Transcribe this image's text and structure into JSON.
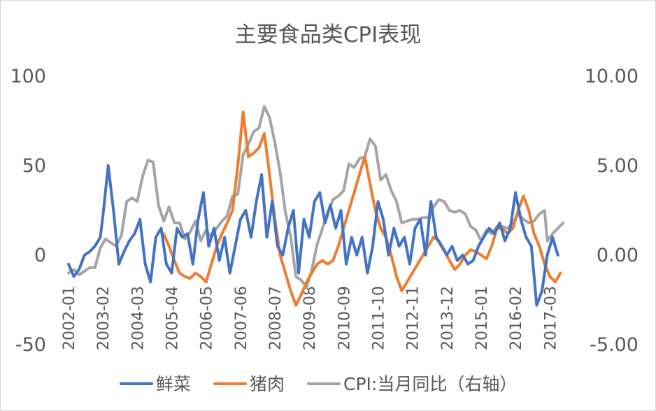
{
  "chart_data": {
    "type": "line",
    "title": "主要食品类CPI表现",
    "x_tick_labels": [
      "2002-01",
      "2003-02",
      "2004-03",
      "2005-04",
      "2006-05",
      "2007-06",
      "2008-07",
      "2009-08",
      "2010-09",
      "2011-10",
      "2012-11",
      "2013-12",
      "2015-01",
      "2016-02",
      "2017-03"
    ],
    "ylim_left": [
      -50,
      100
    ],
    "ylim_right": [
      -5,
      10
    ],
    "y_ticks_left": [
      "100",
      "50",
      "0",
      "-50"
    ],
    "y_ticks_right": [
      "10.00",
      "5.00",
      "0.00",
      "-5.00"
    ],
    "grid": false,
    "legend_position": "bottom",
    "series": [
      {
        "name": "鲜菜",
        "axis": "left",
        "color": "#4472C4",
        "points": [
          [
            "2002-01",
            -5
          ],
          [
            "2002-03",
            -12
          ],
          [
            "2002-05",
            -8
          ],
          [
            "2002-07",
            0
          ],
          [
            "2002-09",
            2
          ],
          [
            "2002-11",
            5
          ],
          [
            "2003-01",
            10
          ],
          [
            "2003-02",
            22
          ],
          [
            "2003-04",
            50
          ],
          [
            "2003-06",
            25
          ],
          [
            "2003-08",
            -5
          ],
          [
            "2003-10",
            2
          ],
          [
            "2003-12",
            8
          ],
          [
            "2004-02",
            12
          ],
          [
            "2004-04",
            20
          ],
          [
            "2004-06",
            -5
          ],
          [
            "2004-08",
            -15
          ],
          [
            "2004-10",
            10
          ],
          [
            "2004-12",
            15
          ],
          [
            "2005-02",
            -5
          ],
          [
            "2005-04",
            -10
          ],
          [
            "2005-06",
            15
          ],
          [
            "2005-08",
            10
          ],
          [
            "2005-10",
            12
          ],
          [
            "2005-12",
            -5
          ],
          [
            "2006-02",
            20
          ],
          [
            "2006-04",
            35
          ],
          [
            "2006-06",
            5
          ],
          [
            "2006-08",
            15
          ],
          [
            "2006-10",
            -3
          ],
          [
            "2006-12",
            10
          ],
          [
            "2007-02",
            -10
          ],
          [
            "2007-04",
            5
          ],
          [
            "2007-06",
            20
          ],
          [
            "2007-08",
            25
          ],
          [
            "2007-10",
            10
          ],
          [
            "2007-12",
            30
          ],
          [
            "2008-02",
            45
          ],
          [
            "2008-04",
            10
          ],
          [
            "2008-06",
            30
          ],
          [
            "2008-08",
            5
          ],
          [
            "2008-10",
            0
          ],
          [
            "2008-12",
            15
          ],
          [
            "2009-02",
            25
          ],
          [
            "2009-04",
            -10
          ],
          [
            "2009-06",
            20
          ],
          [
            "2009-08",
            10
          ],
          [
            "2009-10",
            30
          ],
          [
            "2009-12",
            35
          ],
          [
            "2010-02",
            18
          ],
          [
            "2010-04",
            28
          ],
          [
            "2010-06",
            15
          ],
          [
            "2010-08",
            25
          ],
          [
            "2010-10",
            -5
          ],
          [
            "2010-12",
            10
          ],
          [
            "2011-02",
            0
          ],
          [
            "2011-04",
            10
          ],
          [
            "2011-06",
            -10
          ],
          [
            "2011-08",
            5
          ],
          [
            "2011-10",
            30
          ],
          [
            "2011-12",
            20
          ],
          [
            "2012-02",
            0
          ],
          [
            "2012-04",
            15
          ],
          [
            "2012-06",
            5
          ],
          [
            "2012-08",
            10
          ],
          [
            "2012-10",
            -5
          ],
          [
            "2012-12",
            15
          ],
          [
            "2013-02",
            20
          ],
          [
            "2013-04",
            0
          ],
          [
            "2013-06",
            30
          ],
          [
            "2013-08",
            10
          ],
          [
            "2013-10",
            5
          ],
          [
            "2013-12",
            0
          ],
          [
            "2014-02",
            5
          ],
          [
            "2014-04",
            -3
          ],
          [
            "2014-06",
            0
          ],
          [
            "2014-08",
            -5
          ],
          [
            "2014-10",
            -3
          ],
          [
            "2014-12",
            5
          ],
          [
            "2015-02",
            10
          ],
          [
            "2015-04",
            15
          ],
          [
            "2015-06",
            12
          ],
          [
            "2015-08",
            18
          ],
          [
            "2015-10",
            8
          ],
          [
            "2015-12",
            15
          ],
          [
            "2016-02",
            35
          ],
          [
            "2016-04",
            20
          ],
          [
            "2016-06",
            10
          ],
          [
            "2016-08",
            5
          ],
          [
            "2016-10",
            -28
          ],
          [
            "2016-12",
            -20
          ],
          [
            "2017-02",
            0
          ],
          [
            "2017-04",
            10
          ],
          [
            "2017-06",
            0
          ]
        ]
      },
      {
        "name": "猪肉",
        "axis": "left",
        "color": "#ED7D31",
        "points": [
          [
            "2005-01",
            12
          ],
          [
            "2005-03",
            5
          ],
          [
            "2005-05",
            -3
          ],
          [
            "2005-07",
            -10
          ],
          [
            "2005-09",
            -12
          ],
          [
            "2005-11",
            -13
          ],
          [
            "2006-01",
            -10
          ],
          [
            "2006-03",
            -12
          ],
          [
            "2006-05",
            -15
          ],
          [
            "2006-07",
            -5
          ],
          [
            "2006-09",
            5
          ],
          [
            "2006-11",
            12
          ],
          [
            "2007-01",
            18
          ],
          [
            "2007-03",
            25
          ],
          [
            "2007-05",
            50
          ],
          [
            "2007-07",
            80
          ],
          [
            "2007-09",
            55
          ],
          [
            "2007-11",
            57
          ],
          [
            "2008-01",
            60
          ],
          [
            "2008-03",
            68
          ],
          [
            "2008-05",
            45
          ],
          [
            "2008-07",
            20
          ],
          [
            "2008-09",
            0
          ],
          [
            "2008-11",
            -10
          ],
          [
            "2009-01",
            -20
          ],
          [
            "2009-03",
            -28
          ],
          [
            "2009-05",
            -22
          ],
          [
            "2009-07",
            -15
          ],
          [
            "2009-09",
            -10
          ],
          [
            "2009-11",
            -5
          ],
          [
            "2010-01",
            -3
          ],
          [
            "2010-03",
            -5
          ],
          [
            "2010-05",
            -3
          ],
          [
            "2010-07",
            5
          ],
          [
            "2010-09",
            15
          ],
          [
            "2010-11",
            25
          ],
          [
            "2011-01",
            35
          ],
          [
            "2011-03",
            45
          ],
          [
            "2011-05",
            55
          ],
          [
            "2011-07",
            40
          ],
          [
            "2011-09",
            25
          ],
          [
            "2011-11",
            15
          ],
          [
            "2012-01",
            10
          ],
          [
            "2012-03",
            0
          ],
          [
            "2012-05",
            -12
          ],
          [
            "2012-07",
            -20
          ],
          [
            "2012-09",
            -15
          ],
          [
            "2012-11",
            -10
          ],
          [
            "2013-01",
            -5
          ],
          [
            "2013-03",
            0
          ],
          [
            "2013-05",
            5
          ],
          [
            "2013-07",
            10
          ],
          [
            "2013-09",
            8
          ],
          [
            "2013-11",
            3
          ],
          [
            "2014-01",
            -3
          ],
          [
            "2014-03",
            -8
          ],
          [
            "2014-05",
            -5
          ],
          [
            "2014-07",
            0
          ],
          [
            "2014-09",
            3
          ],
          [
            "2014-11",
            2
          ],
          [
            "2015-01",
            0
          ],
          [
            "2015-03",
            -2
          ],
          [
            "2015-05",
            5
          ],
          [
            "2015-07",
            15
          ],
          [
            "2015-09",
            15
          ],
          [
            "2015-11",
            12
          ],
          [
            "2016-01",
            15
          ],
          [
            "2016-03",
            25
          ],
          [
            "2016-05",
            33
          ],
          [
            "2016-07",
            25
          ],
          [
            "2016-09",
            12
          ],
          [
            "2016-11",
            5
          ],
          [
            "2017-01",
            -5
          ],
          [
            "2017-03",
            -12
          ],
          [
            "2017-05",
            -15
          ],
          [
            "2017-07",
            -10
          ]
        ]
      },
      {
        "name": "CPI:当月同比（右轴）",
        "axis": "right",
        "color": "#A5A5A5",
        "points": [
          [
            "2002-01",
            -1.0
          ],
          [
            "2002-03",
            -0.8
          ],
          [
            "2002-05",
            -1.1
          ],
          [
            "2002-07",
            -0.9
          ],
          [
            "2002-09",
            -0.7
          ],
          [
            "2002-11",
            -0.7
          ],
          [
            "2003-01",
            0.4
          ],
          [
            "2003-03",
            0.9
          ],
          [
            "2003-05",
            0.7
          ],
          [
            "2003-07",
            0.5
          ],
          [
            "2003-09",
            1.1
          ],
          [
            "2003-11",
            3.0
          ],
          [
            "2004-01",
            3.2
          ],
          [
            "2004-03",
            3.0
          ],
          [
            "2004-05",
            4.4
          ],
          [
            "2004-07",
            5.3
          ],
          [
            "2004-09",
            5.2
          ],
          [
            "2004-11",
            2.8
          ],
          [
            "2005-01",
            1.9
          ],
          [
            "2005-03",
            2.7
          ],
          [
            "2005-05",
            1.8
          ],
          [
            "2005-07",
            1.8
          ],
          [
            "2005-09",
            0.9
          ],
          [
            "2005-11",
            1.3
          ],
          [
            "2006-01",
            1.9
          ],
          [
            "2006-03",
            0.8
          ],
          [
            "2006-05",
            1.4
          ],
          [
            "2006-07",
            1.0
          ],
          [
            "2006-09",
            1.5
          ],
          [
            "2006-11",
            1.9
          ],
          [
            "2007-01",
            2.2
          ],
          [
            "2007-03",
            3.3
          ],
          [
            "2007-05",
            3.4
          ],
          [
            "2007-07",
            5.6
          ],
          [
            "2007-09",
            6.2
          ],
          [
            "2007-11",
            6.9
          ],
          [
            "2008-01",
            7.1
          ],
          [
            "2008-03",
            8.3
          ],
          [
            "2008-05",
            7.7
          ],
          [
            "2008-07",
            6.3
          ],
          [
            "2008-09",
            4.6
          ],
          [
            "2008-11",
            2.4
          ],
          [
            "2009-01",
            1.0
          ],
          [
            "2009-03",
            -1.2
          ],
          [
            "2009-05",
            -1.4
          ],
          [
            "2009-07",
            -1.8
          ],
          [
            "2009-09",
            -0.8
          ],
          [
            "2009-11",
            0.6
          ],
          [
            "2010-01",
            1.5
          ],
          [
            "2010-03",
            2.4
          ],
          [
            "2010-05",
            3.1
          ],
          [
            "2010-07",
            3.3
          ],
          [
            "2010-09",
            3.6
          ],
          [
            "2010-11",
            5.1
          ],
          [
            "2011-01",
            4.9
          ],
          [
            "2011-03",
            5.4
          ],
          [
            "2011-05",
            5.5
          ],
          [
            "2011-07",
            6.5
          ],
          [
            "2011-09",
            6.1
          ],
          [
            "2011-11",
            4.2
          ],
          [
            "2012-01",
            4.5
          ],
          [
            "2012-03",
            3.6
          ],
          [
            "2012-05",
            3.0
          ],
          [
            "2012-07",
            1.8
          ],
          [
            "2012-09",
            1.9
          ],
          [
            "2012-11",
            2.0
          ],
          [
            "2013-01",
            2.0
          ],
          [
            "2013-03",
            2.1
          ],
          [
            "2013-05",
            2.1
          ],
          [
            "2013-07",
            2.7
          ],
          [
            "2013-09",
            3.1
          ],
          [
            "2013-11",
            3.0
          ],
          [
            "2014-01",
            2.5
          ],
          [
            "2014-03",
            2.4
          ],
          [
            "2014-05",
            2.5
          ],
          [
            "2014-07",
            2.3
          ],
          [
            "2014-09",
            1.6
          ],
          [
            "2014-11",
            1.4
          ],
          [
            "2015-01",
            0.8
          ],
          [
            "2015-03",
            1.4
          ],
          [
            "2015-05",
            1.2
          ],
          [
            "2015-07",
            1.6
          ],
          [
            "2015-09",
            1.6
          ],
          [
            "2015-11",
            1.5
          ],
          [
            "2016-01",
            1.8
          ],
          [
            "2016-03",
            2.3
          ],
          [
            "2016-05",
            2.0
          ],
          [
            "2016-07",
            1.8
          ],
          [
            "2016-09",
            1.9
          ],
          [
            "2016-11",
            2.3
          ],
          [
            "2017-01",
            2.5
          ],
          [
            "2017-02",
            0.8
          ],
          [
            "2017-04",
            1.2
          ],
          [
            "2017-06",
            1.5
          ],
          [
            "2017-08",
            1.8
          ]
        ]
      }
    ]
  }
}
